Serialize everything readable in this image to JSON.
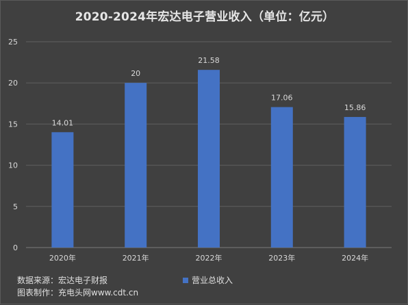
{
  "chart_data": {
    "type": "bar",
    "title": "2020-2024年宏达电子营业收入（单位：亿元）",
    "categories": [
      "2020年",
      "2021年",
      "2022年",
      "2023年",
      "2024年"
    ],
    "series": [
      {
        "name": "营业总收入",
        "values": [
          14.01,
          20,
          21.58,
          17.06,
          15.86
        ],
        "color": "#4472c4"
      }
    ],
    "data_labels": [
      "14.01",
      "20",
      "21.58",
      "17.06",
      "15.86"
    ],
    "ylim": [
      0,
      25
    ],
    "yticks": [
      0,
      5,
      10,
      15,
      20,
      25
    ],
    "grid": true,
    "legend_position": "bottom-center"
  },
  "footer": {
    "source": "数据来源：宏达电子财报",
    "made_by": "图表制作：充电头网www.cdt.cn"
  },
  "colors": {
    "background": "#404040",
    "gridline": "#5f5f5f",
    "text": "#d9d9d9",
    "bar": "#4472c4"
  }
}
